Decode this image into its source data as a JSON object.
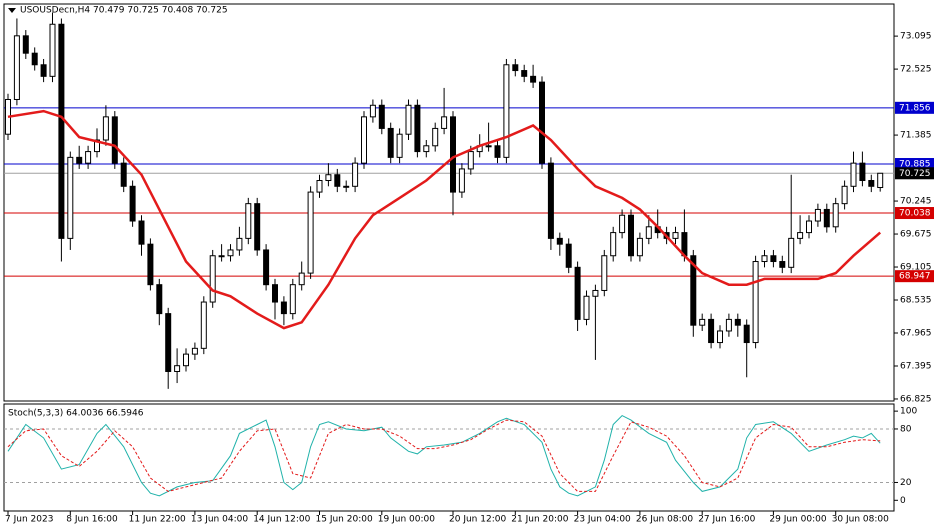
{
  "chart_data": {
    "type": "candlestick",
    "title": "USOUSDecn,H4  70.479 70.725 70.408 70.725",
    "categories": [
      "7 Jun 2023",
      null,
      null,
      null,
      null,
      null,
      null,
      "8 Jun 16:00",
      null,
      null,
      null,
      null,
      null,
      null,
      "11 Jun 22:00",
      null,
      null,
      null,
      null,
      null,
      null,
      "13 Jun 04:00",
      null,
      null,
      null,
      null,
      null,
      null,
      "14 Jun 12:00",
      null,
      null,
      null,
      null,
      null,
      null,
      "15 Jun 20:00",
      null,
      null,
      null,
      null,
      null,
      null,
      "19 Jun 00:00",
      null,
      null,
      null,
      null,
      null,
      null,
      null,
      "20 Jun 12:00",
      null,
      null,
      null,
      null,
      null,
      null,
      "21 Jun 20:00",
      null,
      null,
      null,
      null,
      null,
      null,
      "23 Jun 04:00",
      null,
      null,
      null,
      null,
      null,
      null,
      "26 Jun 08:00",
      null,
      null,
      null,
      null,
      null,
      null,
      "27 Jun 16:00",
      null,
      null,
      null,
      null,
      null,
      null,
      null,
      "29 Jun 00:00",
      null,
      null,
      null,
      null,
      null,
      null,
      "30 Jun 08:00",
      null,
      null,
      null,
      null,
      null
    ],
    "ohlc": [
      [
        71.4,
        72.1,
        71.3,
        72.0
      ],
      [
        72.0,
        73.4,
        71.9,
        73.1
      ],
      [
        73.1,
        73.2,
        72.7,
        72.8
      ],
      [
        72.8,
        72.9,
        72.5,
        72.6
      ],
      [
        72.6,
        72.7,
        72.3,
        72.4
      ],
      [
        72.4,
        73.5,
        72.3,
        73.3
      ],
      [
        73.3,
        73.4,
        69.2,
        69.6
      ],
      [
        69.6,
        71.1,
        69.4,
        71.0
      ],
      [
        71.0,
        71.2,
        70.8,
        70.9
      ],
      [
        70.9,
        71.2,
        70.8,
        71.1
      ],
      [
        71.1,
        71.5,
        71.0,
        71.3
      ],
      [
        71.3,
        71.9,
        71.2,
        71.7
      ],
      [
        71.7,
        71.8,
        70.8,
        70.9
      ],
      [
        70.9,
        71.0,
        70.4,
        70.5
      ],
      [
        70.5,
        70.6,
        69.8,
        69.9
      ],
      [
        69.9,
        70.0,
        69.3,
        69.5
      ],
      [
        69.5,
        69.6,
        68.7,
        68.8
      ],
      [
        68.8,
        68.9,
        68.1,
        68.3
      ],
      [
        68.3,
        68.4,
        67.0,
        67.3
      ],
      [
        67.3,
        67.7,
        67.1,
        67.4
      ],
      [
        67.4,
        67.7,
        67.3,
        67.6
      ],
      [
        67.6,
        67.8,
        67.5,
        67.7
      ],
      [
        67.7,
        68.6,
        67.6,
        68.5
      ],
      [
        68.5,
        69.4,
        68.4,
        69.3
      ],
      [
        69.3,
        69.5,
        69.2,
        69.3
      ],
      [
        69.3,
        69.5,
        69.2,
        69.4
      ],
      [
        69.4,
        69.8,
        69.3,
        69.6
      ],
      [
        69.6,
        70.3,
        69.5,
        70.2
      ],
      [
        70.2,
        70.3,
        69.3,
        69.4
      ],
      [
        69.4,
        69.5,
        68.7,
        68.8
      ],
      [
        68.8,
        68.9,
        68.2,
        68.5
      ],
      [
        68.5,
        68.6,
        68.1,
        68.3
      ],
      [
        68.3,
        68.9,
        68.2,
        68.8
      ],
      [
        68.8,
        69.2,
        68.7,
        69.0
      ],
      [
        69.0,
        70.5,
        68.9,
        70.4
      ],
      [
        70.4,
        70.7,
        70.3,
        70.6
      ],
      [
        70.6,
        70.9,
        70.5,
        70.7
      ],
      [
        70.7,
        70.8,
        70.4,
        70.5
      ],
      [
        70.5,
        70.6,
        70.4,
        70.5
      ],
      [
        70.5,
        71.0,
        70.4,
        70.9
      ],
      [
        70.9,
        71.8,
        70.8,
        71.7
      ],
      [
        71.7,
        72.0,
        71.6,
        71.9
      ],
      [
        71.9,
        72.0,
        71.4,
        71.5
      ],
      [
        71.5,
        71.6,
        70.9,
        71.0
      ],
      [
        71.0,
        71.5,
        70.9,
        71.4
      ],
      [
        71.4,
        72.0,
        71.3,
        71.9
      ],
      [
        71.9,
        72.0,
        71.0,
        71.1
      ],
      [
        71.1,
        71.3,
        71.0,
        71.2
      ],
      [
        71.2,
        71.6,
        71.1,
        71.5
      ],
      [
        71.5,
        72.2,
        71.4,
        71.7
      ],
      [
        71.7,
        71.8,
        70.0,
        70.4
      ],
      [
        70.4,
        70.9,
        70.3,
        70.8
      ],
      [
        70.8,
        71.2,
        70.7,
        71.1
      ],
      [
        71.1,
        71.4,
        71.0,
        71.2
      ],
      [
        71.2,
        71.6,
        71.1,
        71.2
      ],
      [
        71.2,
        71.3,
        70.9,
        71.0
      ],
      [
        71.0,
        72.7,
        70.9,
        72.6
      ],
      [
        72.6,
        72.7,
        72.4,
        72.5
      ],
      [
        72.5,
        72.6,
        72.3,
        72.4
      ],
      [
        72.4,
        72.6,
        72.2,
        72.3
      ],
      [
        72.3,
        72.4,
        70.8,
        70.9
      ],
      [
        70.9,
        71.0,
        69.4,
        69.6
      ],
      [
        69.6,
        69.7,
        69.3,
        69.5
      ],
      [
        69.5,
        69.6,
        69.0,
        69.1
      ],
      [
        69.1,
        69.2,
        68.0,
        68.2
      ],
      [
        68.2,
        68.7,
        68.1,
        68.6
      ],
      [
        68.6,
        68.8,
        67.5,
        68.7
      ],
      [
        68.7,
        69.4,
        68.6,
        69.3
      ],
      [
        69.3,
        69.8,
        69.2,
        69.7
      ],
      [
        69.7,
        70.1,
        69.6,
        70.0
      ],
      [
        70.0,
        70.1,
        69.2,
        69.3
      ],
      [
        69.3,
        69.7,
        69.2,
        69.6
      ],
      [
        69.6,
        70.0,
        69.5,
        69.8
      ],
      [
        69.8,
        70.1,
        69.6,
        69.7
      ],
      [
        69.7,
        69.8,
        69.5,
        69.6
      ],
      [
        69.6,
        69.8,
        69.5,
        69.7
      ],
      [
        69.7,
        70.1,
        69.2,
        69.3
      ],
      [
        69.3,
        69.4,
        67.9,
        68.1
      ],
      [
        68.1,
        68.3,
        68.0,
        68.2
      ],
      [
        68.2,
        68.3,
        67.7,
        67.8
      ],
      [
        67.8,
        68.1,
        67.7,
        68.0
      ],
      [
        68.0,
        68.3,
        67.9,
        68.2
      ],
      [
        68.2,
        68.3,
        67.9,
        68.1
      ],
      [
        68.1,
        68.2,
        67.2,
        67.8
      ],
      [
        67.8,
        69.3,
        67.7,
        69.2
      ],
      [
        69.2,
        69.4,
        69.1,
        69.3
      ],
      [
        69.3,
        69.4,
        69.1,
        69.2
      ],
      [
        69.2,
        69.3,
        69.0,
        69.1
      ],
      [
        69.1,
        70.7,
        69.0,
        69.6
      ],
      [
        69.6,
        70.0,
        69.5,
        69.7
      ],
      [
        69.7,
        70.0,
        69.6,
        69.9
      ],
      [
        69.9,
        70.2,
        69.8,
        70.1
      ],
      [
        70.1,
        70.2,
        69.7,
        69.8
      ],
      [
        69.8,
        70.3,
        69.7,
        70.2
      ],
      [
        70.2,
        70.6,
        70.1,
        70.5
      ],
      [
        70.5,
        71.1,
        70.4,
        70.9
      ],
      [
        70.9,
        71.1,
        70.5,
        70.6
      ],
      [
        70.6,
        70.7,
        70.4,
        70.5
      ],
      [
        70.479,
        70.725,
        70.408,
        70.725
      ]
    ],
    "up_color": "#ffffff",
    "down_color": "#000000",
    "ma": {
      "color": "#e31b1b",
      "x": [
        0,
        4,
        6,
        8,
        12,
        15,
        18,
        20,
        23,
        25,
        28,
        31,
        33,
        36,
        39,
        41,
        44,
        47,
        50,
        53,
        56,
        59,
        61,
        64,
        66,
        69,
        71,
        73,
        76,
        78,
        81,
        83,
        85,
        88,
        91,
        93,
        95,
        98
      ],
      "values": [
        71.7,
        71.8,
        71.7,
        71.35,
        71.2,
        70.7,
        69.8,
        69.2,
        68.7,
        68.6,
        68.3,
        68.05,
        68.15,
        68.8,
        69.6,
        70.0,
        70.3,
        70.6,
        71.0,
        71.2,
        71.35,
        71.55,
        71.3,
        70.8,
        70.5,
        70.3,
        70.1,
        69.8,
        69.3,
        69.0,
        68.8,
        68.8,
        68.9,
        68.9,
        68.9,
        69.0,
        69.3,
        69.7
      ]
    },
    "levels": [
      {
        "value": 71.856,
        "color": "#0000cd"
      },
      {
        "value": 70.885,
        "color": "#0000cd"
      },
      {
        "value": 70.725,
        "color": "#a0a0a0"
      },
      {
        "value": 70.038,
        "color": "#d40000"
      },
      {
        "value": 68.947,
        "color": "#d40000"
      }
    ],
    "ylim": [
      66.79,
      73.65
    ],
    "yticks": [
      73.095,
      72.525,
      71.385,
      70.245,
      69.675,
      69.105,
      68.535,
      67.965,
      67.395,
      66.825
    ],
    "stoch": {
      "title": "Stoch(5,3,3) 64.0036 66.5946",
      "ylim": [
        -12,
        108
      ],
      "yticks": [
        100,
        80,
        20,
        0
      ],
      "levels": [
        80,
        20
      ],
      "series": [
        {
          "color": "#20b2aa",
          "x": [
            0,
            2,
            4,
            6,
            8,
            10,
            11,
            13,
            15,
            16,
            17,
            19,
            21,
            23,
            25,
            26,
            28,
            29,
            30,
            31,
            32,
            33,
            34,
            35,
            36,
            38,
            40,
            42,
            43,
            45,
            46,
            47,
            49,
            51,
            53,
            55,
            56,
            58,
            60,
            61,
            62,
            63,
            64,
            66,
            67,
            68,
            69,
            70,
            72,
            74,
            75,
            77,
            78,
            80,
            82,
            83,
            84,
            86,
            88,
            90,
            92,
            94,
            95,
            96,
            97,
            98
          ],
          "values": [
            55,
            85,
            70,
            35,
            40,
            75,
            85,
            60,
            20,
            8,
            5,
            15,
            20,
            22,
            50,
            75,
            85,
            90,
            60,
            20,
            12,
            20,
            60,
            85,
            88,
            80,
            78,
            82,
            70,
            55,
            52,
            60,
            62,
            65,
            75,
            88,
            92,
            85,
            65,
            35,
            15,
            8,
            5,
            15,
            45,
            85,
            95,
            90,
            75,
            65,
            45,
            20,
            10,
            15,
            35,
            70,
            85,
            88,
            75,
            55,
            62,
            68,
            72,
            70,
            75,
            64
          ]
        },
        {
          "color": "#e31b1b",
          "dashed": true,
          "x": [
            0,
            2,
            4,
            6,
            8,
            10,
            12,
            14,
            16,
            18,
            20,
            22,
            24,
            26,
            28,
            30,
            32,
            34,
            36,
            38,
            40,
            42,
            44,
            46,
            48,
            50,
            52,
            54,
            56,
            58,
            60,
            62,
            64,
            66,
            68,
            70,
            72,
            74,
            76,
            78,
            80,
            82,
            84,
            86,
            88,
            90,
            92,
            94,
            96,
            98
          ],
          "values": [
            60,
            78,
            80,
            50,
            38,
            55,
            78,
            60,
            25,
            10,
            15,
            20,
            25,
            55,
            78,
            80,
            30,
            25,
            75,
            85,
            80,
            80,
            72,
            58,
            58,
            62,
            68,
            80,
            90,
            88,
            72,
            30,
            10,
            10,
            50,
            88,
            82,
            72,
            50,
            20,
            15,
            25,
            70,
            85,
            82,
            60,
            60,
            65,
            68,
            66.6
          ]
        }
      ]
    }
  }
}
